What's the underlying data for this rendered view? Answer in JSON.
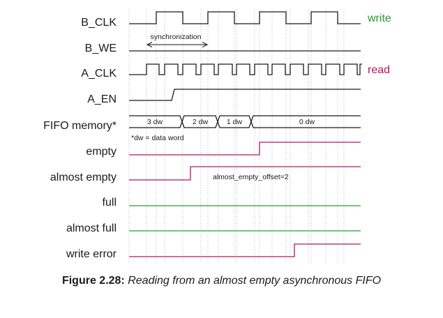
{
  "signals": [
    {
      "id": "b_clk",
      "label": "B_CLK",
      "type": "clock",
      "color": "#1a1a1a",
      "side_label": "write",
      "side_color": "#2a9a2a"
    },
    {
      "id": "b_we",
      "label": "B_WE",
      "type": "bit",
      "color": "#1a1a1a"
    },
    {
      "id": "a_clk",
      "label": "A_CLK",
      "type": "clock",
      "color": "#1a1a1a",
      "side_label": "read",
      "side_color": "#b0175f"
    },
    {
      "id": "a_en",
      "label": "A_EN",
      "type": "bit",
      "color": "#1a1a1a"
    },
    {
      "id": "fifo_memory",
      "label": "FIFO memory*",
      "type": "bus",
      "color": "#1a1a1a",
      "values": [
        "3 dw",
        "2 dw",
        "1 dw",
        "0 dw"
      ]
    },
    {
      "id": "empty",
      "label": "empty",
      "type": "bit",
      "color": "#b0175f"
    },
    {
      "id": "almost_empty",
      "label": "almost empty",
      "type": "bit",
      "color": "#b0175f"
    },
    {
      "id": "full",
      "label": "full",
      "type": "bit",
      "color": "#2a9a2a"
    },
    {
      "id": "almost_full",
      "label": "almost full",
      "type": "bit",
      "color": "#2a9a2a"
    },
    {
      "id": "write_error",
      "label": "write error",
      "type": "bit",
      "color": "#b0175f"
    }
  ],
  "annotations": {
    "synchronization": "synchronization",
    "dw_note": "*dw = data word",
    "offset_note": "almost_empty_offset=2"
  },
  "caption": {
    "number": "Figure 2.28:",
    "text": "Reading from an almost empty asynchronous FIFO"
  }
}
